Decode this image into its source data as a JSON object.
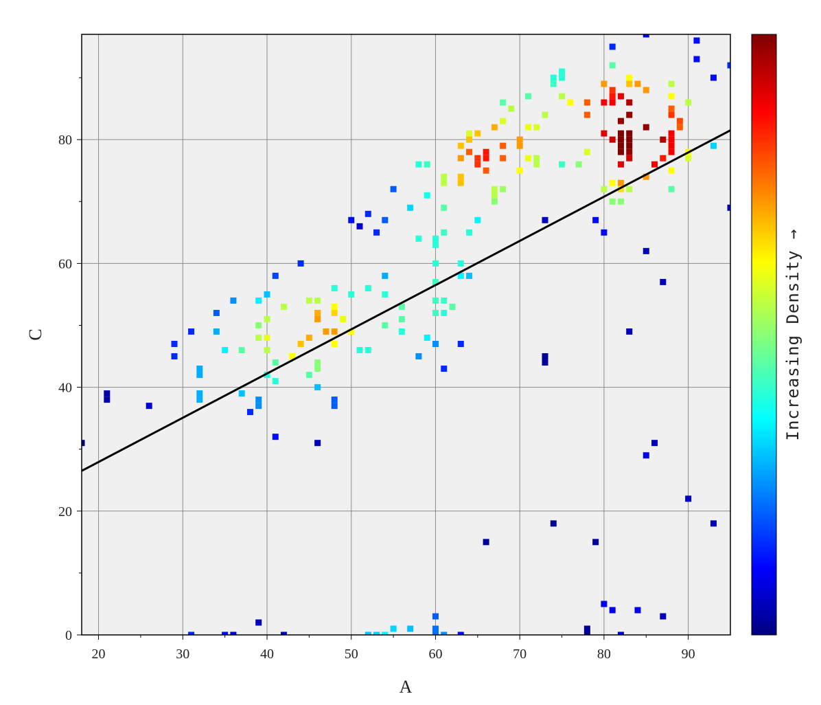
{
  "chart_data": {
    "type": "scatter",
    "subtype": "density-scatter-heatmap",
    "xlabel": "A",
    "ylabel": "C",
    "xlim": [
      18,
      95
    ],
    "ylim": [
      0,
      97
    ],
    "x_ticks": [
      20,
      30,
      40,
      50,
      60,
      70,
      80,
      90
    ],
    "y_ticks": [
      0,
      20,
      40,
      60,
      80
    ],
    "grid": true,
    "background": "#f0f0f0",
    "colorbar_label": "Increasing Density →",
    "colormap": "jet",
    "fit_line": {
      "x": [
        18,
        95
      ],
      "y": [
        26.5,
        81.5
      ],
      "color": "#000000"
    },
    "points": [
      [
        18,
        31,
        0.0
      ],
      [
        21,
        38,
        0.03
      ],
      [
        21,
        39,
        0.03
      ],
      [
        26,
        37,
        0.08
      ],
      [
        29,
        47,
        0.15
      ],
      [
        29,
        45,
        0.15
      ],
      [
        31,
        49,
        0.15
      ],
      [
        31,
        0,
        0.15
      ],
      [
        32,
        43,
        0.28
      ],
      [
        32,
        42,
        0.28
      ],
      [
        32,
        39,
        0.28
      ],
      [
        32,
        38,
        0.28
      ],
      [
        34,
        52,
        0.2
      ],
      [
        34,
        49,
        0.28
      ],
      [
        35,
        46,
        0.35
      ],
      [
        35,
        0,
        0.12
      ],
      [
        36,
        54,
        0.25
      ],
      [
        36,
        0,
        0.08
      ],
      [
        37,
        46,
        0.45
      ],
      [
        37,
        39,
        0.3
      ],
      [
        38,
        36,
        0.15
      ],
      [
        39,
        54,
        0.35
      ],
      [
        39,
        50,
        0.5
      ],
      [
        39,
        48,
        0.55
      ],
      [
        39,
        38,
        0.25
      ],
      [
        39,
        37,
        0.25
      ],
      [
        39,
        2,
        0.05
      ],
      [
        40,
        55,
        0.3
      ],
      [
        40,
        51,
        0.55
      ],
      [
        40,
        48,
        0.6
      ],
      [
        40,
        46,
        0.55
      ],
      [
        40,
        42,
        0.4
      ],
      [
        41,
        58,
        0.18
      ],
      [
        41,
        44,
        0.45
      ],
      [
        41,
        41,
        0.4
      ],
      [
        41,
        32,
        0.12
      ],
      [
        42,
        53,
        0.55
      ],
      [
        42,
        0,
        0.05
      ],
      [
        43,
        45,
        0.62
      ],
      [
        44,
        60,
        0.15
      ],
      [
        44,
        47,
        0.68
      ],
      [
        45,
        54,
        0.55
      ],
      [
        45,
        48,
        0.7
      ],
      [
        45,
        42,
        0.45
      ],
      [
        46,
        54,
        0.55
      ],
      [
        46,
        52,
        0.7
      ],
      [
        46,
        51,
        0.72
      ],
      [
        46,
        44,
        0.5
      ],
      [
        46,
        43,
        0.5
      ],
      [
        46,
        40,
        0.3
      ],
      [
        46,
        31,
        0.05
      ],
      [
        47,
        49,
        0.72
      ],
      [
        48,
        56,
        0.4
      ],
      [
        48,
        53,
        0.62
      ],
      [
        48,
        52,
        0.66
      ],
      [
        48,
        49,
        0.72
      ],
      [
        48,
        47,
        0.62
      ],
      [
        48,
        38,
        0.2
      ],
      [
        48,
        37,
        0.2
      ],
      [
        49,
        51,
        0.6
      ],
      [
        50,
        67,
        0.12
      ],
      [
        50,
        55,
        0.4
      ],
      [
        50,
        49,
        0.62
      ],
      [
        51,
        66,
        0.08
      ],
      [
        51,
        46,
        0.4
      ],
      [
        52,
        68,
        0.15
      ],
      [
        52,
        56,
        0.4
      ],
      [
        52,
        46,
        0.4
      ],
      [
        52,
        0,
        0.3
      ],
      [
        53,
        65,
        0.15
      ],
      [
        53,
        0,
        0.32
      ],
      [
        54,
        67,
        0.2
      ],
      [
        54,
        58,
        0.28
      ],
      [
        54,
        55,
        0.4
      ],
      [
        54,
        50,
        0.45
      ],
      [
        54,
        0,
        0.35
      ],
      [
        55,
        72,
        0.2
      ],
      [
        55,
        1,
        0.32
      ],
      [
        56,
        53,
        0.45
      ],
      [
        56,
        51,
        0.45
      ],
      [
        56,
        49,
        0.4
      ],
      [
        57,
        69,
        0.32
      ],
      [
        57,
        1,
        0.3
      ],
      [
        58,
        76,
        0.4
      ],
      [
        58,
        64,
        0.4
      ],
      [
        58,
        45,
        0.25
      ],
      [
        59,
        76,
        0.42
      ],
      [
        59,
        71,
        0.38
      ],
      [
        59,
        48,
        0.35
      ],
      [
        60,
        64,
        0.4
      ],
      [
        60,
        63,
        0.4
      ],
      [
        60,
        60,
        0.4
      ],
      [
        60,
        57,
        0.42
      ],
      [
        60,
        54,
        0.42
      ],
      [
        60,
        52,
        0.42
      ],
      [
        60,
        47,
        0.25
      ],
      [
        60,
        3,
        0.2
      ],
      [
        60,
        1,
        0.22
      ],
      [
        60,
        0,
        0.22
      ],
      [
        61,
        74,
        0.55
      ],
      [
        61,
        73,
        0.55
      ],
      [
        61,
        69,
        0.45
      ],
      [
        61,
        65,
        0.42
      ],
      [
        61,
        54,
        0.42
      ],
      [
        61,
        52,
        0.4
      ],
      [
        61,
        43,
        0.15
      ],
      [
        61,
        0,
        0.25
      ],
      [
        62,
        53,
        0.45
      ],
      [
        63,
        79,
        0.68
      ],
      [
        63,
        77,
        0.72
      ],
      [
        63,
        74,
        0.68
      ],
      [
        63,
        73,
        0.68
      ],
      [
        63,
        60,
        0.4
      ],
      [
        63,
        58,
        0.35
      ],
      [
        63,
        47,
        0.15
      ],
      [
        63,
        0,
        0.12
      ],
      [
        64,
        81,
        0.58
      ],
      [
        64,
        80,
        0.68
      ],
      [
        64,
        78,
        0.78
      ],
      [
        64,
        65,
        0.4
      ],
      [
        64,
        58,
        0.3
      ],
      [
        65,
        81,
        0.68
      ],
      [
        65,
        77,
        0.82
      ],
      [
        65,
        76,
        0.82
      ],
      [
        65,
        67,
        0.35
      ],
      [
        66,
        78,
        0.85
      ],
      [
        66,
        77,
        0.85
      ],
      [
        66,
        75,
        0.78
      ],
      [
        66,
        15,
        0.02
      ],
      [
        67,
        82,
        0.7
      ],
      [
        67,
        72,
        0.55
      ],
      [
        67,
        71,
        0.55
      ],
      [
        67,
        70,
        0.5
      ],
      [
        68,
        86,
        0.45
      ],
      [
        68,
        83,
        0.58
      ],
      [
        68,
        79,
        0.78
      ],
      [
        68,
        77,
        0.78
      ],
      [
        68,
        72,
        0.52
      ],
      [
        69,
        85,
        0.55
      ],
      [
        70,
        80,
        0.72
      ],
      [
        70,
        79,
        0.72
      ],
      [
        70,
        75,
        0.62
      ],
      [
        71,
        87,
        0.45
      ],
      [
        71,
        82,
        0.6
      ],
      [
        71,
        77,
        0.6
      ],
      [
        72,
        82,
        0.58
      ],
      [
        72,
        77,
        0.55
      ],
      [
        72,
        76,
        0.55
      ],
      [
        73,
        84,
        0.55
      ],
      [
        73,
        67,
        0.06
      ],
      [
        73,
        45,
        0.02
      ],
      [
        73,
        44,
        0.02
      ],
      [
        74,
        90,
        0.4
      ],
      [
        74,
        89,
        0.42
      ],
      [
        74,
        18,
        0.02
      ],
      [
        75,
        91,
        0.4
      ],
      [
        75,
        90,
        0.4
      ],
      [
        75,
        87,
        0.55
      ],
      [
        75,
        76,
        0.42
      ],
      [
        76,
        86,
        0.62
      ],
      [
        77,
        76,
        0.5
      ],
      [
        78,
        86,
        0.78
      ],
      [
        78,
        84,
        0.78
      ],
      [
        78,
        78,
        0.58
      ],
      [
        78,
        1,
        0.02
      ],
      [
        78,
        0,
        0.02
      ],
      [
        79,
        67,
        0.12
      ],
      [
        79,
        15,
        0.02
      ],
      [
        80,
        89,
        0.72
      ],
      [
        80,
        86,
        0.88
      ],
      [
        80,
        81,
        0.9
      ],
      [
        80,
        72,
        0.55
      ],
      [
        80,
        65,
        0.12
      ],
      [
        80,
        5,
        0.1
      ],
      [
        81,
        95,
        0.15
      ],
      [
        81,
        92,
        0.45
      ],
      [
        81,
        88,
        0.82
      ],
      [
        81,
        87,
        0.85
      ],
      [
        81,
        86,
        0.88
      ],
      [
        81,
        80,
        0.92
      ],
      [
        81,
        73,
        0.62
      ],
      [
        81,
        70,
        0.5
      ],
      [
        81,
        4,
        0.1
      ],
      [
        82,
        87,
        0.9
      ],
      [
        82,
        83,
        0.98
      ],
      [
        82,
        81,
        1.0
      ],
      [
        82,
        80,
        1.0
      ],
      [
        82,
        79,
        1.0
      ],
      [
        82,
        78,
        1.0
      ],
      [
        82,
        76,
        0.9
      ],
      [
        82,
        73,
        0.72
      ],
      [
        82,
        72,
        0.65
      ],
      [
        82,
        70,
        0.5
      ],
      [
        82,
        0,
        0.08
      ],
      [
        83,
        90,
        0.62
      ],
      [
        83,
        89,
        0.68
      ],
      [
        83,
        86,
        0.95
      ],
      [
        83,
        84,
        0.98
      ],
      [
        83,
        81,
        1.0
      ],
      [
        83,
        80,
        1.0
      ],
      [
        83,
        79,
        1.0
      ],
      [
        83,
        78,
        0.98
      ],
      [
        83,
        77,
        0.92
      ],
      [
        83,
        72,
        0.55
      ],
      [
        83,
        49,
        0.05
      ],
      [
        84,
        89,
        0.72
      ],
      [
        84,
        4,
        0.1
      ],
      [
        85,
        97,
        0.1
      ],
      [
        85,
        88,
        0.72
      ],
      [
        85,
        82,
        0.98
      ],
      [
        85,
        74,
        0.72
      ],
      [
        85,
        62,
        0.05
      ],
      [
        85,
        29,
        0.1
      ],
      [
        86,
        76,
        0.88
      ],
      [
        86,
        31,
        0.05
      ],
      [
        87,
        80,
        0.95
      ],
      [
        87,
        77,
        0.85
      ],
      [
        87,
        57,
        0.05
      ],
      [
        87,
        3,
        0.05
      ],
      [
        88,
        89,
        0.55
      ],
      [
        88,
        87,
        0.62
      ],
      [
        88,
        85,
        0.78
      ],
      [
        88,
        84,
        0.82
      ],
      [
        88,
        81,
        0.88
      ],
      [
        88,
        80,
        0.88
      ],
      [
        88,
        79,
        0.88
      ],
      [
        88,
        78,
        0.88
      ],
      [
        88,
        75,
        0.62
      ],
      [
        88,
        72,
        0.45
      ],
      [
        89,
        83,
        0.8
      ],
      [
        89,
        82,
        0.78
      ],
      [
        90,
        86,
        0.55
      ],
      [
        90,
        78,
        0.62
      ],
      [
        90,
        77,
        0.58
      ],
      [
        90,
        22,
        0.05
      ],
      [
        91,
        96,
        0.12
      ],
      [
        91,
        93,
        0.12
      ],
      [
        93,
        90,
        0.12
      ],
      [
        93,
        79,
        0.32
      ],
      [
        93,
        18,
        0.05
      ],
      [
        95,
        92,
        0.15
      ],
      [
        95,
        69,
        0.05
      ]
    ]
  }
}
